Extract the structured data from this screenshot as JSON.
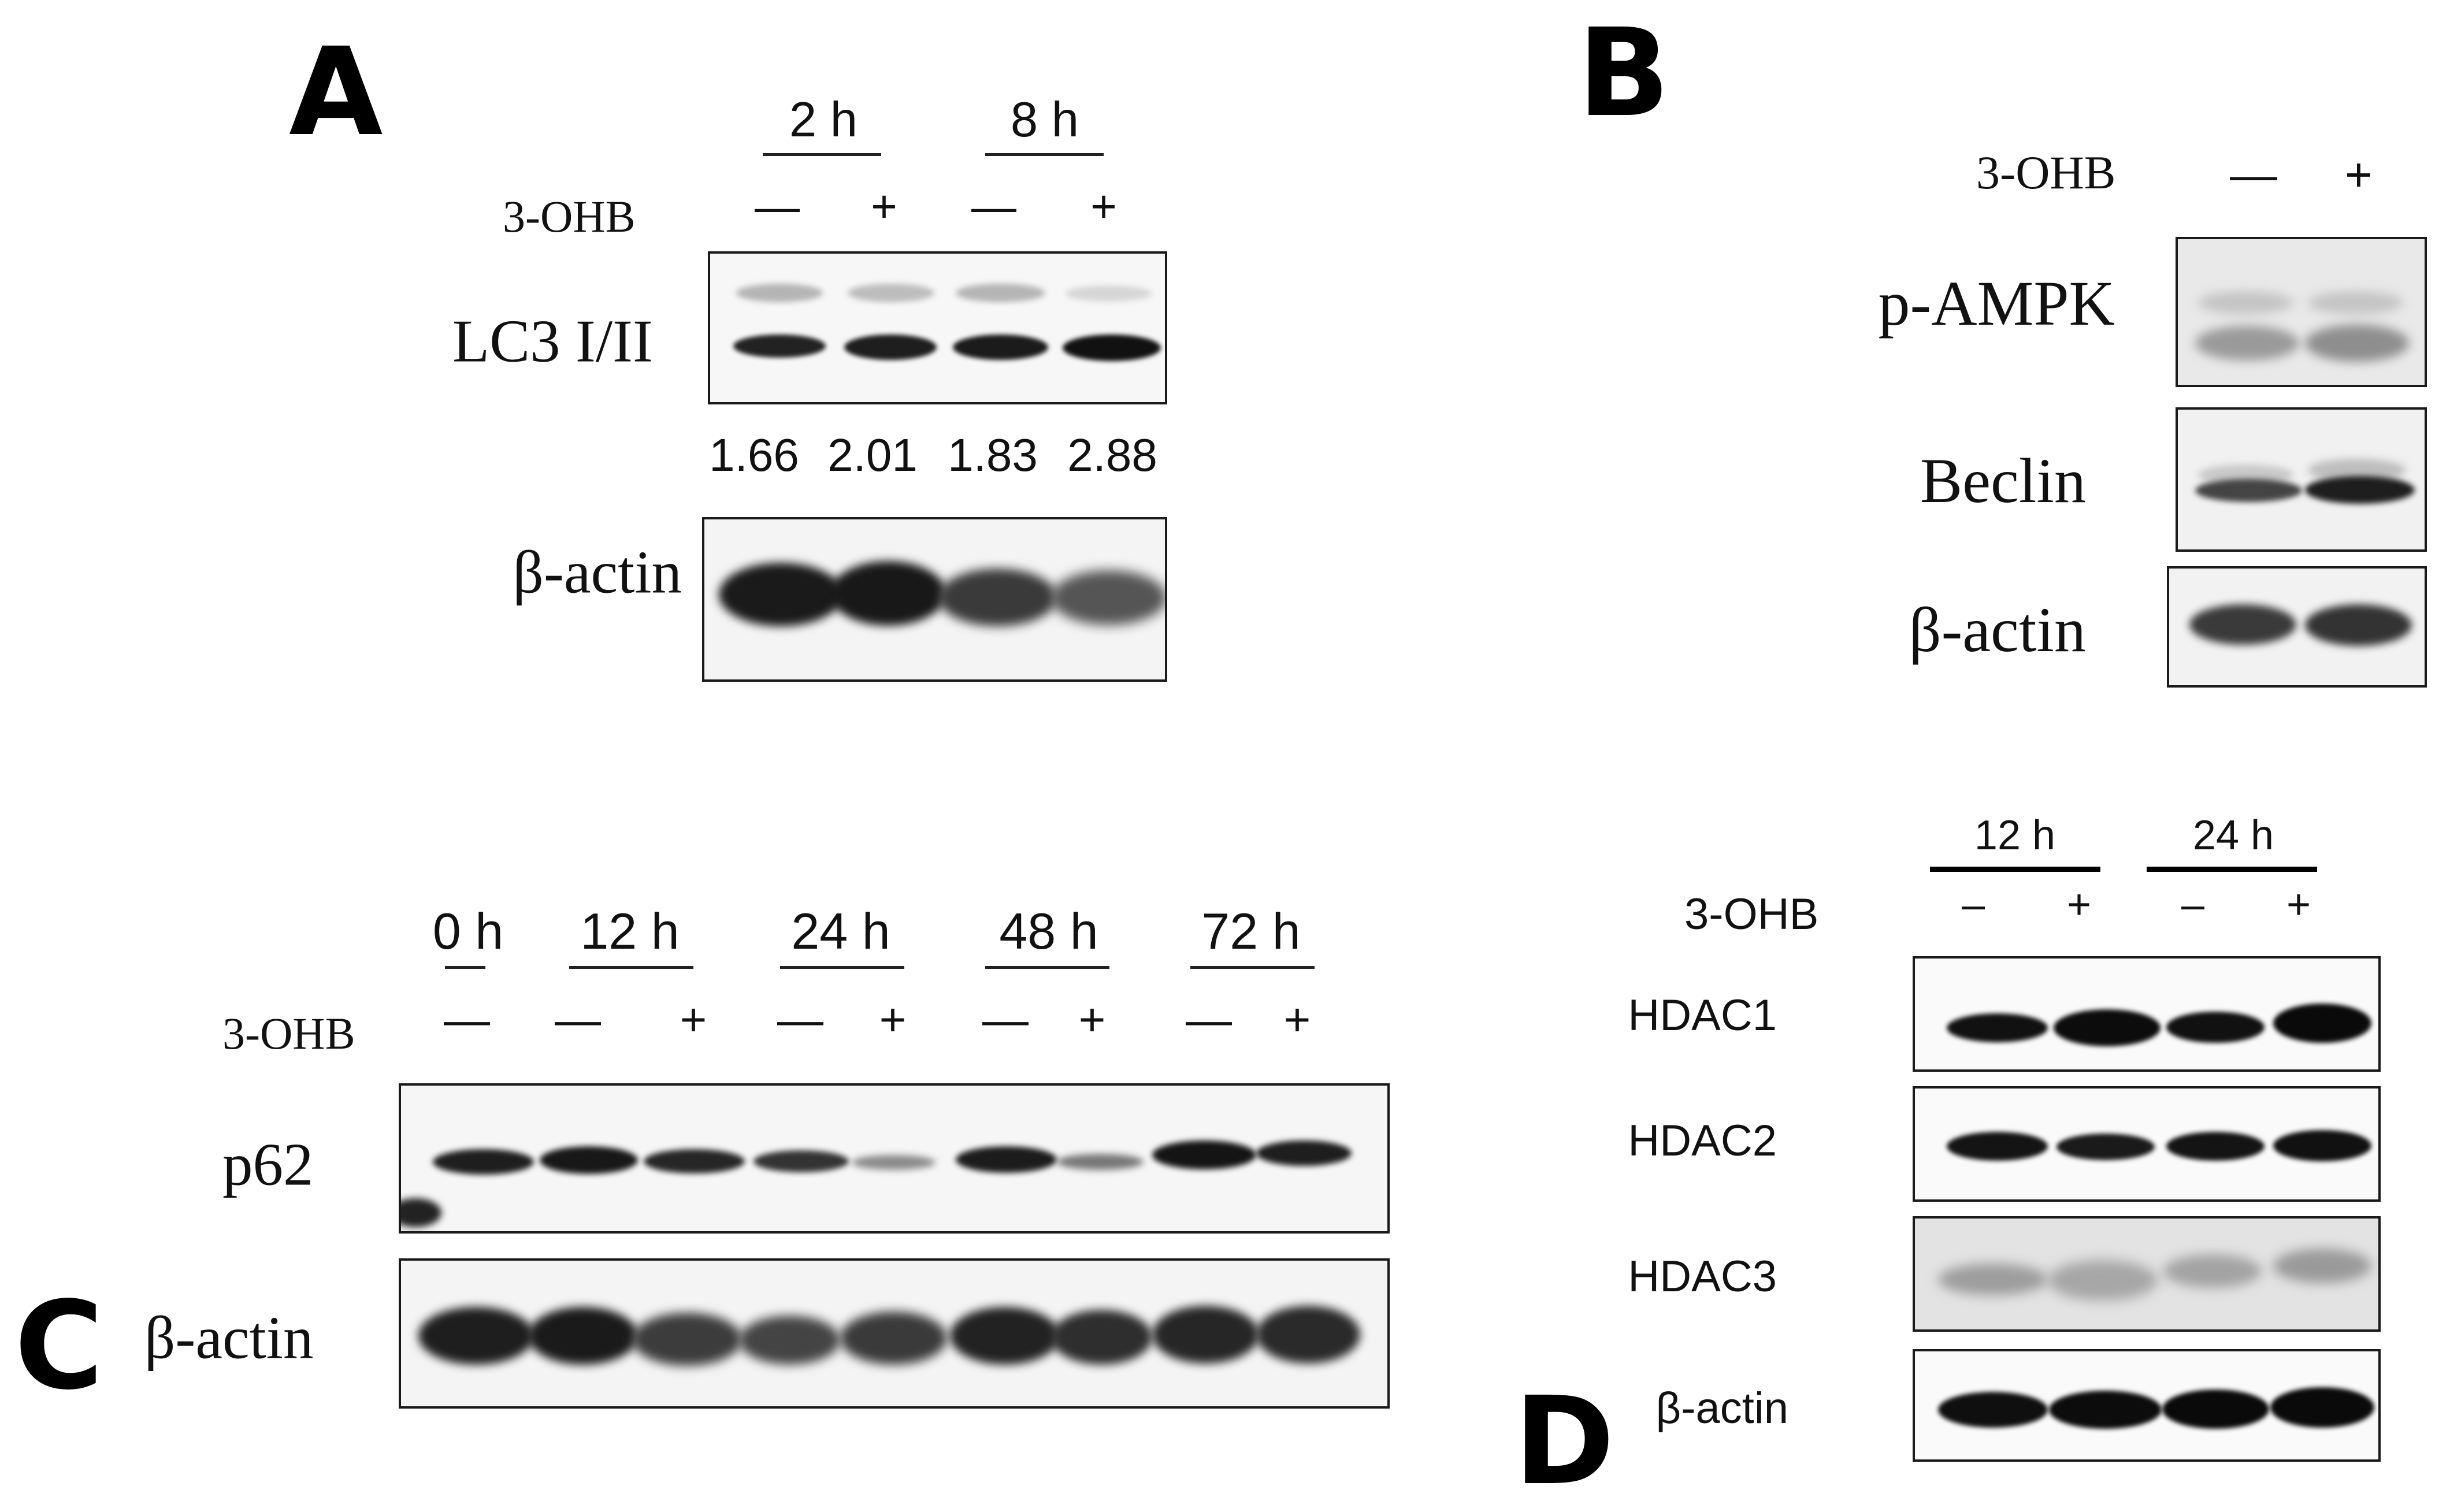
{
  "panels": {
    "A": {
      "letter": "A",
      "timepoints": [
        "2 h",
        "8 h"
      ],
      "treatment_label": "3-OHB",
      "treatment_signs": [
        "—",
        "+",
        "—",
        "+"
      ],
      "blots": [
        {
          "label": "LC3 I/II"
        },
        {
          "label": "β-actin"
        }
      ],
      "ratios": [
        "1.66",
        "2.01",
        "1.83",
        "2.88"
      ]
    },
    "B": {
      "letter": "B",
      "treatment_label": "3-OHB",
      "treatment_signs": [
        "—",
        "+"
      ],
      "blots": [
        {
          "label": "p-AMPK"
        },
        {
          "label": "Beclin"
        },
        {
          "label": "β-actin"
        }
      ]
    },
    "C": {
      "letter": "C",
      "timepoints": [
        "0 h",
        "12 h",
        "24 h",
        "48 h",
        "72 h"
      ],
      "treatment_label": "3-OHB",
      "treatment_signs": [
        "—",
        "—",
        "+",
        "—",
        "+",
        "—",
        "+",
        "—",
        "+"
      ],
      "blots": [
        {
          "label": "p62"
        },
        {
          "label": "β-actin"
        }
      ]
    },
    "D": {
      "letter": "D",
      "timepoints": [
        "12 h",
        "24 h"
      ],
      "treatment_label": "3-OHB",
      "treatment_signs": [
        "–",
        "+",
        "–",
        "+"
      ],
      "blots": [
        {
          "label": "HDAC1"
        },
        {
          "label": "HDAC2"
        },
        {
          "label": "HDAC3"
        },
        {
          "label": "β-actin"
        }
      ]
    }
  }
}
